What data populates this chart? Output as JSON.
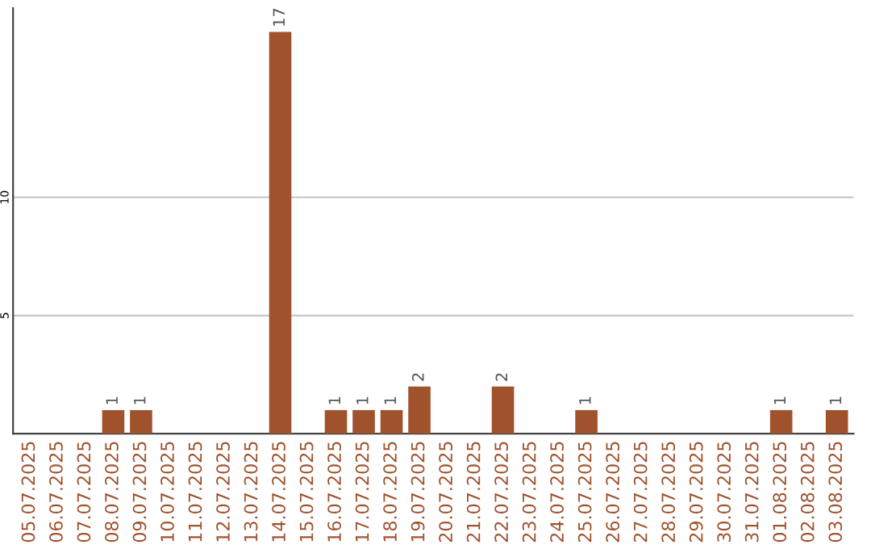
{
  "chart_data": {
    "type": "bar",
    "categories": [
      "05.07.2025",
      "06.07.2025",
      "07.07.2025",
      "08.07.2025",
      "09.07.2025",
      "10.07.2025",
      "11.07.2025",
      "12.07.2025",
      "13.07.2025",
      "14.07.2025",
      "15.07.2025",
      "16.07.2025",
      "17.07.2025",
      "18.07.2025",
      "19.07.2025",
      "20.07.2025",
      "21.07.2025",
      "22.07.2025",
      "23.07.2025",
      "24.07.2025",
      "25.07.2025",
      "26.07.2025",
      "27.07.2025",
      "28.07.2025",
      "29.07.2025",
      "30.07.2025",
      "31.07.2025",
      "01.08.2025",
      "02.08.2025",
      "03.08.2025"
    ],
    "values": [
      0,
      0,
      0,
      1,
      1,
      0,
      0,
      0,
      0,
      17,
      0,
      1,
      1,
      1,
      2,
      0,
      0,
      2,
      0,
      0,
      1,
      0,
      0,
      0,
      0,
      0,
      0,
      1,
      0,
      1
    ],
    "value_labels": [
      null,
      null,
      null,
      "1",
      "1",
      null,
      null,
      null,
      null,
      "17",
      null,
      "1",
      "1",
      "1",
      "2",
      null,
      null,
      "2",
      null,
      null,
      "1",
      null,
      null,
      null,
      null,
      null,
      null,
      "1",
      null,
      "1"
    ],
    "color": "#a0522d",
    "ylim": [
      0,
      18
    ],
    "yticks": [
      5,
      10
    ],
    "grid": "y"
  }
}
